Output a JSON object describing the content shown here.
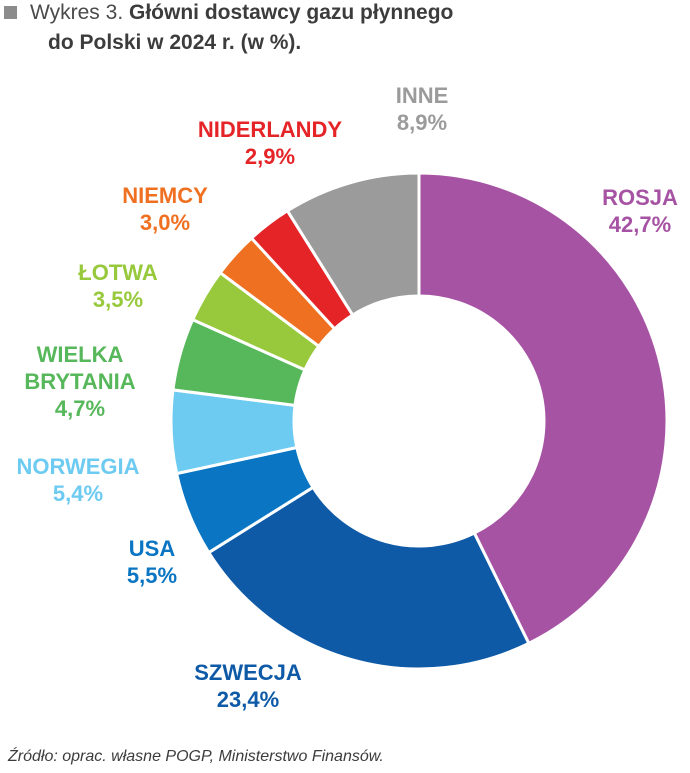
{
  "header": {
    "prefix": "Wykres 3.",
    "title_line1": "Główni dostawcy gazu płynnego",
    "title_line2": "do Polski w 2024 r. (w %)."
  },
  "chart_data": {
    "type": "pie",
    "title": "Główni dostawcy gazu płynnego do Polski w 2024 r. (w %).",
    "unit": "%",
    "slices": [
      {
        "name": "ROSJA",
        "value": 42.7,
        "value_label": "42,7%",
        "color": "#a653a3"
      },
      {
        "name": "SZWECJA",
        "value": 23.4,
        "value_label": "23,4%",
        "color": "#0e5aa7"
      },
      {
        "name": "USA",
        "value": 5.5,
        "value_label": "5,5%",
        "color": "#0a75c2"
      },
      {
        "name": "NORWEGIA",
        "value": 5.4,
        "value_label": "5,4%",
        "color": "#6dcbf1"
      },
      {
        "name": "WIELKA BRYTANIA",
        "value": 4.7,
        "value_label": "4,7%",
        "color": "#57b75b"
      },
      {
        "name": "ŁOTWA",
        "value": 3.5,
        "value_label": "3,5%",
        "color": "#98c93c"
      },
      {
        "name": "NIEMCY",
        "value": 3.0,
        "value_label": "3,0%",
        "color": "#f07022"
      },
      {
        "name": "NIDERLANDY",
        "value": 2.9,
        "value_label": "2,9%",
        "color": "#e52428"
      },
      {
        "name": "INNE",
        "value": 8.9,
        "value_label": "8,9%",
        "color": "#9b9b9b"
      }
    ]
  },
  "source": "Źródło: oprac. własne POGP, Ministerstwo Finansów."
}
